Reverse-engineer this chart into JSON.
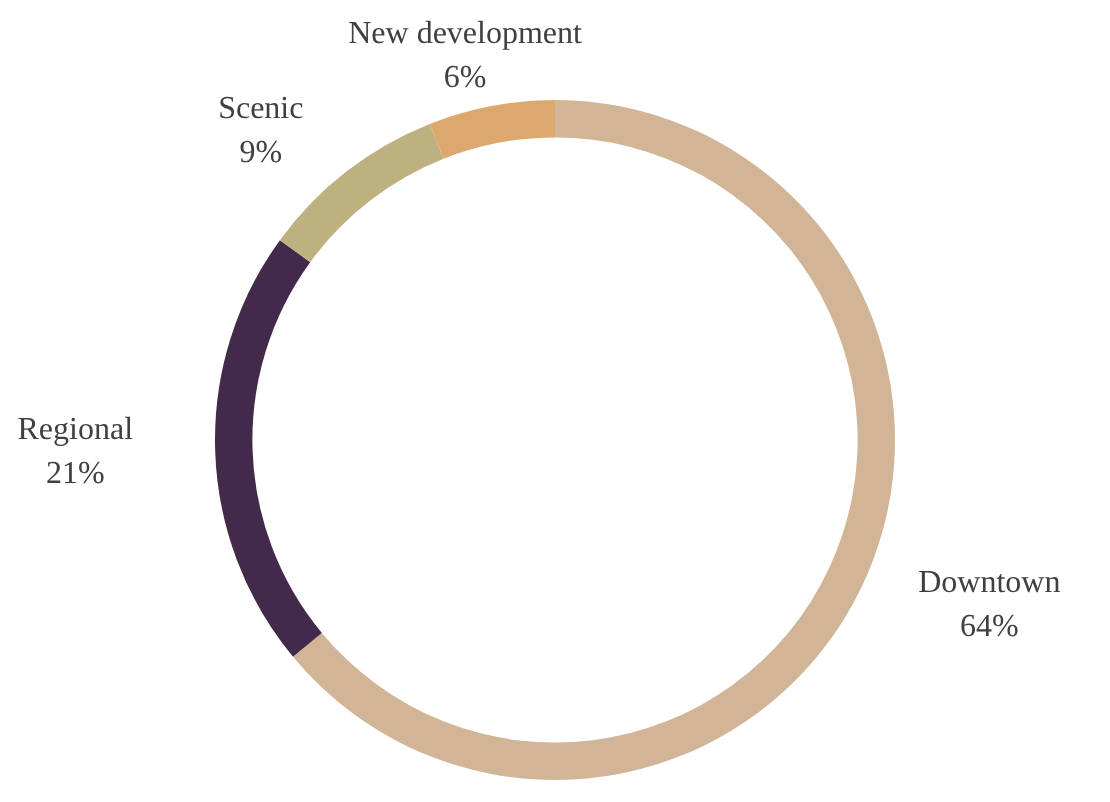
{
  "chart_data": {
    "type": "donut",
    "categories": [
      "Downtown",
      "Regional",
      "Scenic",
      "New development"
    ],
    "values": [
      64,
      21,
      9,
      6
    ],
    "value_labels": [
      "64%",
      "21%",
      "9%",
      "6%"
    ],
    "colors": [
      "#d2b597",
      "#43294a",
      "#bdb27f",
      "#dca86d"
    ],
    "legend": false
  }
}
